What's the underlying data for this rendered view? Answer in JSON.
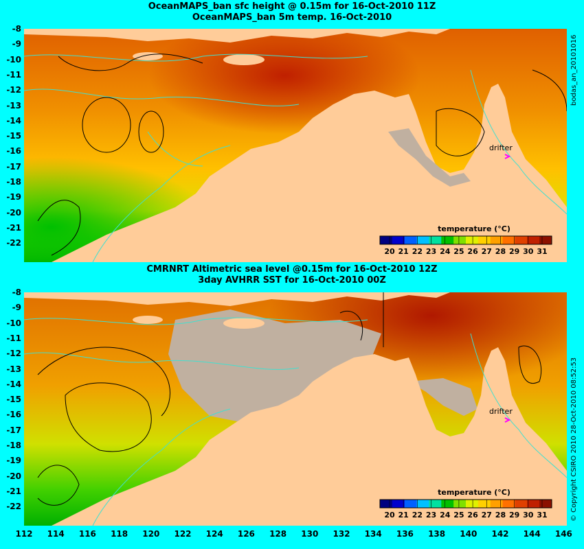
{
  "top_panel": {
    "title_line1": "OceanMAPS_ban sfc height @ 0.15m for 16-Oct-2010 11Z",
    "title_line2": "OceanMAPS_ban 5m temp. 16-Oct-2010",
    "side_label": "bodas_an_20101016",
    "drifter_label": "drifter",
    "colorbar_title": "temperature (°C)"
  },
  "bottom_panel": {
    "title_line1": "CMRNRT Altimetric sea level  @0.15m  for 16-Oct-2010 12Z",
    "title_line2": "3day AVHRR SST for 16-Oct-2010 00Z",
    "side_label": "© Copyright CSIRO 2010   28-Oct-2010 08:52:53",
    "drifter_label": "drifter",
    "colorbar_title": "temperature (°C)"
  },
  "colorbar_ticks": [
    "20",
    "21",
    "22",
    "23",
    "24",
    "25",
    "26",
    "27",
    "28",
    "29",
    "30",
    "31"
  ],
  "latitude_ticks": [
    "-8",
    "-9",
    "-10",
    "-11",
    "-12",
    "-13",
    "-14",
    "-15",
    "-16",
    "-17",
    "-18",
    "-19",
    "-20",
    "-21",
    "-22"
  ],
  "longitude_ticks": [
    "112",
    "114",
    "116",
    "118",
    "120",
    "122",
    "124",
    "126",
    "128",
    "130",
    "132",
    "134",
    "136",
    "138",
    "140",
    "142",
    "144",
    "146"
  ],
  "colors": {
    "background": "#00ffff",
    "land": "#ffcc99",
    "missing": "#c0b0a0",
    "drifter": "#ff00ff",
    "contour": "#000000",
    "bathymetry": "#40e0d0"
  },
  "colorbar_colors": [
    "#000080",
    "#0000cc",
    "#0060ff",
    "#00c0ff",
    "#00e0a0",
    "#00c000",
    "#80e000",
    "#e0f000",
    "#ffd000",
    "#ffa000",
    "#ff7000",
    "#e04000",
    "#c02000",
    "#8b1000"
  ],
  "map": {
    "lon_range": [
      112,
      146
    ],
    "lat_range": [
      -22.5,
      -8
    ],
    "drifter": {
      "lon": 143.1,
      "lat": -15.9
    }
  }
}
